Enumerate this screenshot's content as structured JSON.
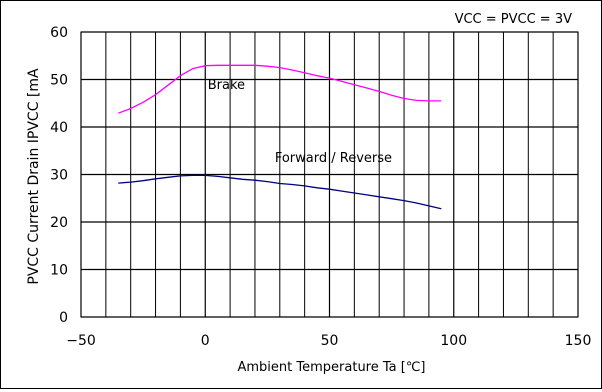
{
  "chart_data": {
    "type": "line",
    "title": "",
    "condition_label": "VCC = PVCC =  3V",
    "xlabel": "Ambient Temperature Ta [℃]",
    "ylabel": "PVCC Current Drain IPVCC [mA",
    "xlim": [
      -50,
      150
    ],
    "ylim": [
      0,
      60
    ],
    "x_ticks": [
      -50,
      0,
      50,
      100,
      150
    ],
    "x_tick_labels": [
      "−50",
      "0",
      "50",
      "100",
      "150"
    ],
    "y_ticks": [
      0,
      10,
      20,
      30,
      40,
      50,
      60
    ],
    "y_tick_labels": [
      "0",
      "10",
      "20",
      "30",
      "40",
      "50",
      "60"
    ],
    "minor_x_step": 10,
    "grid": true,
    "series": [
      {
        "name": "Brake",
        "color": "#ff00ff",
        "x": [
          -35,
          -30,
          -25,
          -20,
          -15,
          -10,
          -5,
          0,
          5,
          10,
          15,
          20,
          25,
          30,
          35,
          40,
          45,
          50,
          55,
          60,
          65,
          70,
          75,
          80,
          85,
          90,
          95
        ],
        "y": [
          42.9,
          43.9,
          45.2,
          46.8,
          48.8,
          50.8,
          52.3,
          52.9,
          53.0,
          53.0,
          53.0,
          53.0,
          52.8,
          52.5,
          52.0,
          51.4,
          50.8,
          50.3,
          49.6,
          48.9,
          48.2,
          47.5,
          46.7,
          46.0,
          45.6,
          45.5,
          45.5
        ]
      },
      {
        "name": "Forward / Reverse",
        "color": "#000080",
        "x": [
          -35,
          -30,
          -25,
          -20,
          -15,
          -10,
          -5,
          0,
          5,
          10,
          15,
          20,
          25,
          30,
          35,
          40,
          45,
          50,
          55,
          60,
          65,
          70,
          75,
          80,
          85,
          90,
          95
        ],
        "y": [
          28.2,
          28.4,
          28.7,
          29.1,
          29.4,
          29.7,
          29.8,
          29.8,
          29.6,
          29.3,
          29.0,
          28.8,
          28.5,
          28.1,
          27.9,
          27.6,
          27.2,
          26.9,
          26.5,
          26.1,
          25.7,
          25.3,
          24.9,
          24.5,
          24.0,
          23.4,
          22.8
        ]
      }
    ]
  }
}
